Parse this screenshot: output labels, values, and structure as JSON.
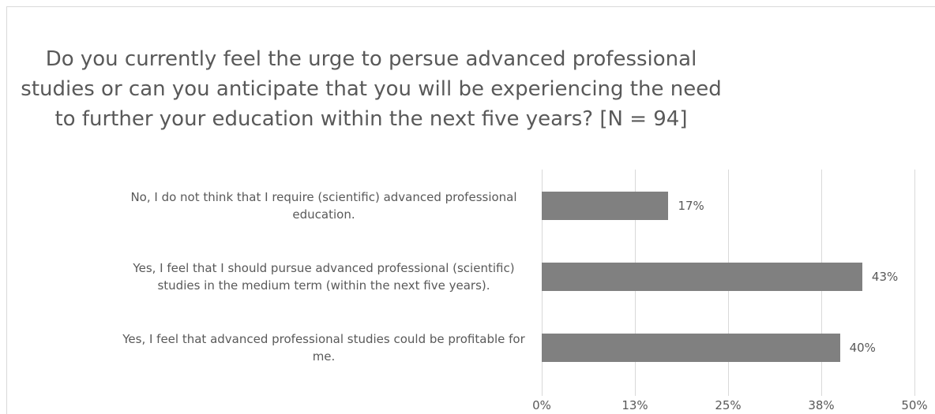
{
  "chart_data": {
    "type": "bar",
    "orientation": "horizontal",
    "title": "Do you currently feel the urge to persue advanced professional studies or can you anticipate that you will be experiencing the need to further your education within the next five years? [N = 94]",
    "categories": [
      "No, I do not think that I require (scientific) advanced professional education.",
      "Yes, I feel that I should pursue advanced professional (scientific) studies in the medium term (within the next five years).",
      "Yes, I feel that advanced professional studies could be profitable for me."
    ],
    "values": [
      17,
      43,
      40
    ],
    "value_labels": [
      "17%",
      "43%",
      "40%"
    ],
    "color": "#808080",
    "xlim": [
      0,
      50
    ],
    "xticks": [
      {
        "value": 0,
        "label": "0%"
      },
      {
        "value": 12.5,
        "label": "13%"
      },
      {
        "value": 25,
        "label": "25%"
      },
      {
        "value": 37.5,
        "label": "38%"
      },
      {
        "value": 50,
        "label": "50%"
      }
    ],
    "grid": true
  }
}
